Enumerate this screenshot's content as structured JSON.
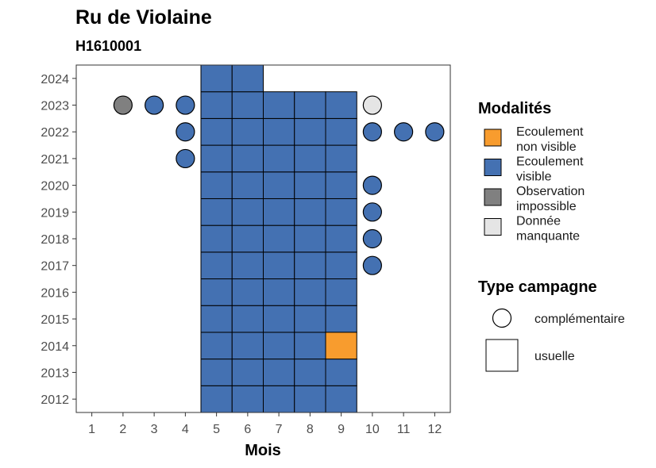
{
  "chart_data": {
    "type": "heatmap",
    "title": "Ru de Violaine",
    "subtitle": "H1610001",
    "xlabel": "Mois",
    "ylabel": "",
    "x_ticks": [
      1,
      2,
      3,
      4,
      5,
      6,
      7,
      8,
      9,
      10,
      11,
      12
    ],
    "y_ticks": [
      2012,
      2013,
      2014,
      2015,
      2016,
      2017,
      2018,
      2019,
      2020,
      2021,
      2022,
      2023,
      2024
    ],
    "xlim": [
      0.5,
      12.5
    ],
    "ylim": [
      2011.5,
      2024.5
    ],
    "grid": false,
    "legend_placement": "right",
    "colors": {
      "non_visible": "#F89C2E",
      "visible": "#4471B2",
      "impossible": "#808080",
      "manquante": "#E5E5E5"
    },
    "legend": {
      "modalites_title": "Modalités",
      "modalites": [
        {
          "key": "non_visible",
          "line1": "Ecoulement",
          "line2": "non visible"
        },
        {
          "key": "visible",
          "line1": "Ecoulement",
          "line2": "visible"
        },
        {
          "key": "impossible",
          "line1": "Observation",
          "line2": "impossible"
        },
        {
          "key": "manquante",
          "line1": "Donnée",
          "line2": "manquante"
        }
      ],
      "type_title": "Type campagne",
      "types": [
        {
          "shape": "circle",
          "label": "complémentaire"
        },
        {
          "shape": "square",
          "label": "usuelle"
        }
      ]
    },
    "usuelle": [
      {
        "month": 5,
        "years": [
          2012,
          2013,
          2014,
          2015,
          2016,
          2017,
          2018,
          2019,
          2020,
          2021,
          2022,
          2023,
          2024
        ],
        "state": "visible"
      },
      {
        "month": 6,
        "years": [
          2012,
          2013,
          2014,
          2015,
          2016,
          2017,
          2018,
          2019,
          2020,
          2021,
          2022,
          2023,
          2024
        ],
        "state": "visible"
      },
      {
        "month": 7,
        "years": [
          2012,
          2013,
          2014,
          2015,
          2016,
          2017,
          2018,
          2019,
          2020,
          2021,
          2022,
          2023
        ],
        "state": "visible"
      },
      {
        "month": 8,
        "years": [
          2012,
          2013,
          2014,
          2015,
          2016,
          2017,
          2018,
          2019,
          2020,
          2021,
          2022,
          2023
        ],
        "state": "visible"
      },
      {
        "month": 9,
        "years": [
          2012,
          2013,
          2015,
          2016,
          2017,
          2018,
          2019,
          2020,
          2021,
          2022,
          2023
        ],
        "state": "visible"
      },
      {
        "month": 9,
        "years": [
          2014
        ],
        "state": "non_visible"
      }
    ],
    "complementaire": [
      {
        "month": 2,
        "year": 2023,
        "state": "impossible"
      },
      {
        "month": 3,
        "year": 2023,
        "state": "visible"
      },
      {
        "month": 4,
        "year": 2023,
        "state": "visible"
      },
      {
        "month": 4,
        "year": 2022,
        "state": "visible"
      },
      {
        "month": 4,
        "year": 2021,
        "state": "visible"
      },
      {
        "month": 10,
        "year": 2023,
        "state": "manquante"
      },
      {
        "month": 10,
        "year": 2022,
        "state": "visible"
      },
      {
        "month": 11,
        "year": 2022,
        "state": "visible"
      },
      {
        "month": 12,
        "year": 2022,
        "state": "visible"
      },
      {
        "month": 10,
        "year": 2020,
        "state": "visible"
      },
      {
        "month": 10,
        "year": 2019,
        "state": "visible"
      },
      {
        "month": 10,
        "year": 2018,
        "state": "visible"
      },
      {
        "month": 10,
        "year": 2017,
        "state": "visible"
      }
    ]
  }
}
